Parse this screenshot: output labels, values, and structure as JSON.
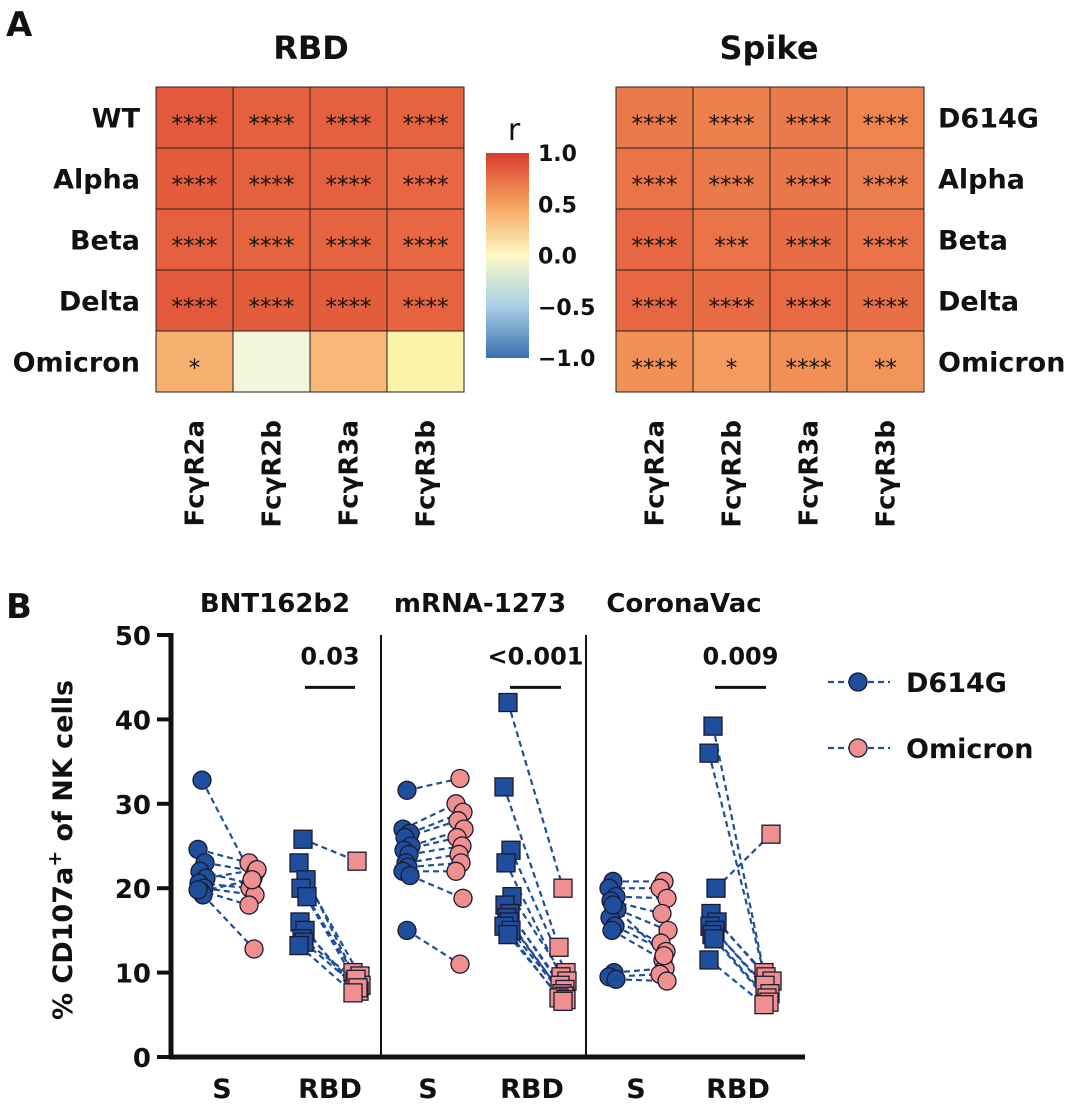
{
  "panel_labels": [
    "A",
    "B"
  ],
  "chart_data": [
    {
      "type": "heatmap",
      "title": "RBD",
      "rows": [
        "WT",
        "Alpha",
        "Beta",
        "Delta",
        "Omicron"
      ],
      "cols": [
        "FcγR2a",
        "FcγR2b",
        "FcγR3a",
        "FcγR3b"
      ],
      "values": [
        [
          0.9,
          0.88,
          0.88,
          0.87
        ],
        [
          0.89,
          0.88,
          0.88,
          0.86
        ],
        [
          0.88,
          0.87,
          0.87,
          0.86
        ],
        [
          0.9,
          0.89,
          0.89,
          0.87
        ],
        [
          0.55,
          0.03,
          0.5,
          0.25
        ]
      ],
      "annotations": [
        [
          "****",
          "****",
          "****",
          "****"
        ],
        [
          "****",
          "****",
          "****",
          "****"
        ],
        [
          "****",
          "****",
          "****",
          "****"
        ],
        [
          "****",
          "****",
          "****",
          "****"
        ],
        [
          "*",
          "",
          "",
          ""
        ]
      ]
    },
    {
      "type": "heatmap",
      "title": "Spike",
      "rows": [
        "D614G",
        "Alpha",
        "Beta",
        "Delta",
        "Omicron"
      ],
      "cols": [
        "FcγR2a",
        "FcγR2b",
        "FcγR3a",
        "FcγR3b"
      ],
      "values": [
        [
          0.8,
          0.78,
          0.8,
          0.77
        ],
        [
          0.82,
          0.8,
          0.81,
          0.79
        ],
        [
          0.86,
          0.82,
          0.84,
          0.82
        ],
        [
          0.86,
          0.84,
          0.85,
          0.83
        ],
        [
          0.72,
          0.66,
          0.72,
          0.69
        ]
      ],
      "annotations": [
        [
          "****",
          "****",
          "****",
          "****"
        ],
        [
          "****",
          "****",
          "****",
          "****"
        ],
        [
          "****",
          "***",
          "****",
          "****"
        ],
        [
          "****",
          "****",
          "****",
          "****"
        ],
        [
          "****",
          "*",
          "****",
          "**"
        ]
      ]
    },
    {
      "type": "colorbar",
      "title": "r",
      "ticks": [
        "1.0",
        "0.5",
        "0.0",
        "−0.5",
        "−1.0"
      ],
      "tick_values": [
        1.0,
        0.5,
        0.0,
        -0.5,
        -1.0
      ],
      "range": [
        -1.0,
        1.0
      ]
    },
    {
      "type": "scatter",
      "ylabel_main": "% CD107a",
      "ylabel_sup": "+",
      "ylabel_rest": " of NK cells",
      "ylim": [
        0,
        50
      ],
      "yticks": [
        0,
        10,
        20,
        30,
        40,
        50
      ],
      "xcats": [
        "S",
        "RBD"
      ],
      "legend": [
        {
          "name": "D614G",
          "color": "#1f4e9c"
        },
        {
          "name": "Omicron",
          "color": "#f08f8f"
        }
      ],
      "groups": [
        {
          "name": "BNT162b2",
          "S": {
            "D614G": [
              32.8,
              24.6,
              23.0,
              22.0,
              21.2,
              20.6,
              20.0,
              19.6,
              19.2,
              19.8
            ],
            "Omicron": [
              21.2,
              23.0,
              22.0,
              20.5,
              22.2,
              20.0,
              19.2,
              21.0,
              12.8,
              18.0
            ]
          },
          "RBD": {
            "D614G": [
              25.8,
              23.0,
              21.0,
              20.0,
              19.0,
              16.0,
              15.0,
              14.0,
              13.6,
              13.2
            ],
            "Omicron": [
              23.2,
              10.0,
              9.6,
              9.0,
              8.5,
              8.0,
              7.8,
              9.2,
              8.2,
              7.6
            ]
          },
          "pvalue": "0.03"
        },
        {
          "name": "mRNA-1273",
          "S": {
            "D614G": [
              31.6,
              27.0,
              26.5,
              26.0,
              25.0,
              24.5,
              24.0,
              23.0,
              22.5,
              22.0,
              21.5,
              15.0
            ],
            "Omicron": [
              33.0,
              30.0,
              29.0,
              28.0,
              27.0,
              26.0,
              25.0,
              24.0,
              23.0,
              22.0,
              18.8,
              11.0
            ]
          },
          "RBD": {
            "D614G": [
              42.0,
              32.0,
              24.5,
              23.0,
              19.0,
              18.0,
              17.0,
              16.5,
              16.0,
              15.5,
              15.0,
              14.5
            ],
            "Omicron": [
              20.0,
              13.0,
              10.0,
              9.5,
              9.0,
              8.5,
              8.0,
              7.5,
              7.2,
              7.0,
              6.8,
              6.6
            ]
          },
          "pvalue": "<0.001"
        },
        {
          "name": "CoronaVac",
          "S": {
            "D614G": [
              20.8,
              20.0,
              19.0,
              18.5,
              17.5,
              16.5,
              15.5,
              15.0,
              10.0,
              9.5,
              9.2,
              18.0
            ],
            "Omicron": [
              20.8,
              20.0,
              18.8,
              17.0,
              15.0,
              13.5,
              12.5,
              11.5,
              10.5,
              9.8,
              9.0,
              12.0
            ],
            "pairs": [
              [
                0,
                0
              ],
              [
                1,
                1
              ],
              [
                2,
                2
              ],
              [
                3,
                3
              ],
              [
                4,
                4
              ],
              [
                5,
                5
              ],
              [
                6,
                6
              ],
              [
                7,
                7
              ],
              [
                8,
                8
              ],
              [
                9,
                9
              ],
              [
                10,
                10
              ],
              [
                11,
                11
              ]
            ]
          },
          "RBD": {
            "D614G": [
              39.2,
              36.0,
              20.0,
              17.0,
              16.0,
              15.5,
              15.0,
              14.5,
              14.0,
              11.5
            ],
            "Omicron": [
              8.0,
              10.0,
              26.4,
              9.5,
              9.0,
              8.5,
              7.5,
              7.0,
              6.5,
              6.2
            ],
            "pairs": [
              [
                0,
                1
              ],
              [
                1,
                0
              ],
              [
                2,
                2
              ],
              [
                3,
                3
              ],
              [
                4,
                4
              ],
              [
                5,
                5
              ],
              [
                6,
                6
              ],
              [
                7,
                7
              ],
              [
                8,
                8
              ],
              [
                9,
                9
              ]
            ]
          },
          "pvalue": "0.009"
        }
      ]
    }
  ]
}
